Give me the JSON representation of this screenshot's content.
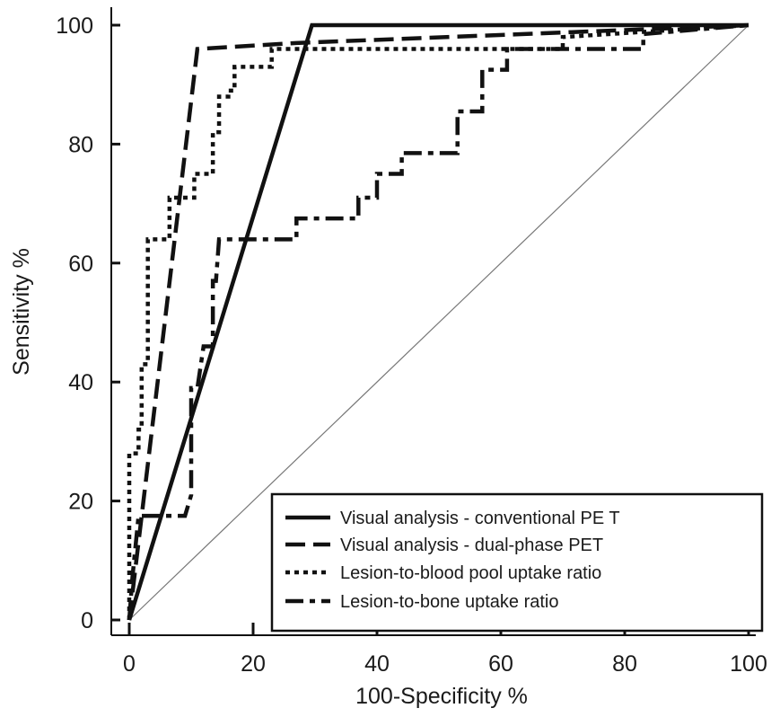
{
  "chart_data": {
    "type": "line",
    "title": "",
    "xlabel": "100-Specificity %",
    "ylabel": "Sensitivity %",
    "xlim": [
      0,
      100
    ],
    "ylim": [
      0,
      100
    ],
    "xticks": [
      0,
      20,
      40,
      60,
      80,
      100
    ],
    "yticks": [
      0,
      20,
      40,
      60,
      80,
      100
    ],
    "grid": false,
    "legend_position": "bottom-right",
    "reference_line": {
      "x": [
        0,
        100
      ],
      "y": [
        0,
        100
      ]
    },
    "series": [
      {
        "name": "Visual analysis - conventional PE T",
        "style": "solid",
        "points": [
          [
            0,
            0
          ],
          [
            29.5,
            100
          ],
          [
            100,
            100
          ]
        ]
      },
      {
        "name": "Visual analysis - dual-phase PET",
        "style": "dashed",
        "points": [
          [
            0,
            0
          ],
          [
            11,
            96
          ],
          [
            27,
            97
          ],
          [
            100,
            100
          ]
        ]
      },
      {
        "name": "Lesion-to-blood pool uptake ratio",
        "style": "dotted",
        "points": [
          [
            0,
            0
          ],
          [
            0,
            28
          ],
          [
            1.5,
            28
          ],
          [
            1.5,
            32
          ],
          [
            2,
            32
          ],
          [
            2,
            43
          ],
          [
            3,
            43
          ],
          [
            3,
            64
          ],
          [
            6.5,
            64
          ],
          [
            6.5,
            71
          ],
          [
            10.5,
            71
          ],
          [
            10.5,
            75
          ],
          [
            13.5,
            75
          ],
          [
            13.5,
            82
          ],
          [
            14.5,
            82
          ],
          [
            14.5,
            88
          ],
          [
            16,
            88
          ],
          [
            16,
            89
          ],
          [
            17,
            89
          ],
          [
            17,
            93
          ],
          [
            23,
            93
          ],
          [
            23,
            96
          ],
          [
            70,
            96
          ],
          [
            70,
            98
          ],
          [
            100,
            100
          ]
        ]
      },
      {
        "name": "Lesion-to-bone uptake ratio",
        "style": "dashdot",
        "points": [
          [
            0,
            0
          ],
          [
            0.5,
            7
          ],
          [
            1.5,
            17.5
          ],
          [
            9,
            17.5
          ],
          [
            10,
            21
          ],
          [
            10,
            39
          ],
          [
            11,
            39
          ],
          [
            12,
            46
          ],
          [
            13.5,
            46
          ],
          [
            13.5,
            57
          ],
          [
            14,
            57
          ],
          [
            14.5,
            64
          ],
          [
            27,
            64
          ],
          [
            27,
            67.5
          ],
          [
            37,
            67.5
          ],
          [
            37,
            71
          ],
          [
            40,
            71
          ],
          [
            40,
            75
          ],
          [
            44,
            75
          ],
          [
            44,
            78.5
          ],
          [
            53,
            78.5
          ],
          [
            53,
            85.5
          ],
          [
            57,
            85.5
          ],
          [
            57,
            92.5
          ],
          [
            61,
            92.5
          ],
          [
            61,
            96
          ],
          [
            83,
            96
          ],
          [
            83,
            98.5
          ],
          [
            100,
            100
          ]
        ]
      }
    ]
  }
}
